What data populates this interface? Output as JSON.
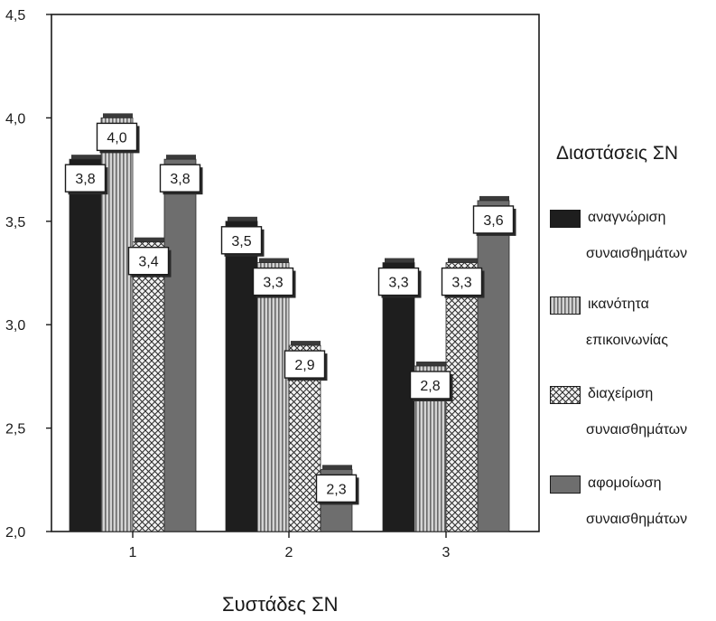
{
  "chart_data": {
    "type": "bar",
    "categories": [
      "1",
      "2",
      "3"
    ],
    "series": [
      {
        "name": "αναγνώριση συναισθημάτων",
        "name_lines": [
          "αναγνώριση",
          "συναισθημάτων"
        ],
        "values": [
          3.8,
          3.5,
          3.3
        ],
        "labels": [
          "3,8",
          "3,5",
          "3,3"
        ],
        "pattern": "solid-dark",
        "color": "#1e1e1e"
      },
      {
        "name": "ικανότητα επικοινωνίας",
        "name_lines": [
          "ικανότητα",
          "επικοινωνίας"
        ],
        "values": [
          4.0,
          3.3,
          2.8
        ],
        "labels": [
          "4,0",
          "3,3",
          "2,8"
        ],
        "pattern": "vertical-stripes",
        "color": "#b8b8b8"
      },
      {
        "name": "διαχείριση συναισθημάτων",
        "name_lines": [
          "διαχείριση",
          "συναισθημάτων"
        ],
        "values": [
          3.4,
          2.9,
          3.3
        ],
        "labels": [
          "3,4",
          "2,9",
          "3,3"
        ],
        "pattern": "crosshatch",
        "color": "#e0e0e0"
      },
      {
        "name": "αφομοίωση συναισθημάτων",
        "name_lines": [
          "αφομοίωση",
          "συναισθημάτων"
        ],
        "values": [
          3.8,
          2.3,
          3.6
        ],
        "labels": [
          "3,8",
          "2,3",
          "3,6"
        ],
        "pattern": "solid-medium",
        "color": "#6e6e6e"
      }
    ],
    "title": "",
    "xlabel": "Συστάδες ΣΝ",
    "ylabel": "",
    "ylim": [
      2.0,
      4.5
    ],
    "y_ticks": [
      2.0,
      2.5,
      3.0,
      3.5,
      4.0,
      4.5
    ],
    "y_tick_labels": [
      "2,0",
      "2,5",
      "3,0",
      "3,5",
      "4,0",
      "4,5"
    ],
    "legend_title": "Διαστάσεις ΣΝ",
    "legend_position": "right",
    "grid": false
  }
}
